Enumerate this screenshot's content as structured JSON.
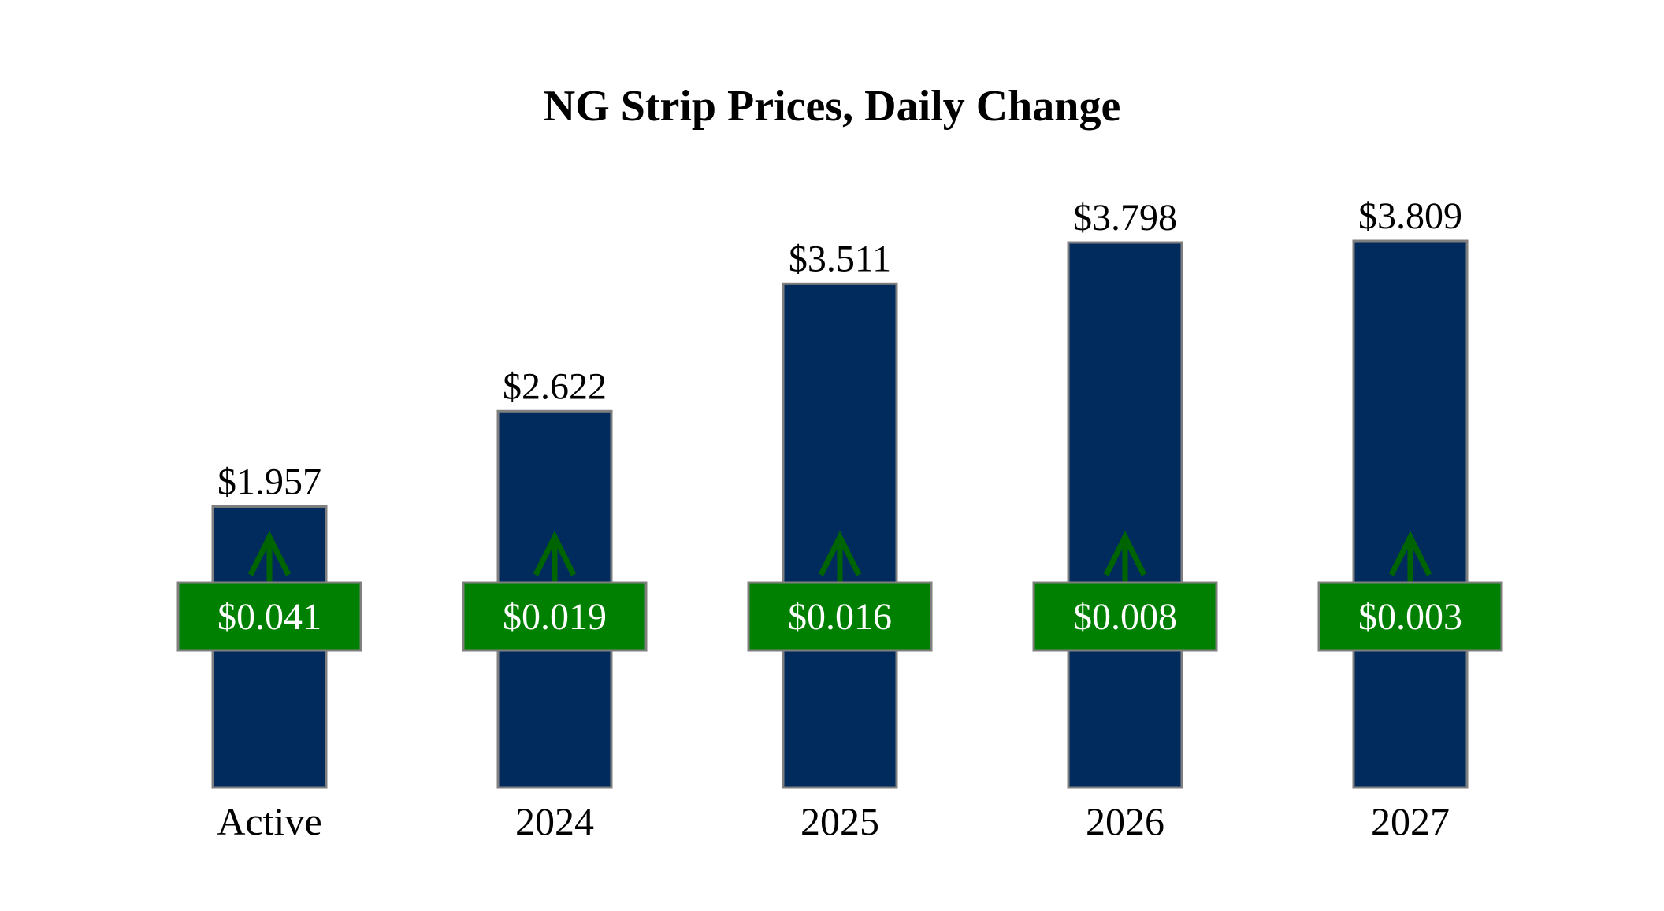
{
  "chart_data": {
    "type": "bar",
    "title": "NG Strip Prices, Daily Change",
    "xlabel": "",
    "ylabel": "",
    "categories": [
      "Active",
      "2024",
      "2025",
      "2026",
      "2027"
    ],
    "values": [
      1.957,
      2.622,
      3.511,
      3.798,
      3.809
    ],
    "value_labels": [
      "$1.957",
      "$2.622",
      "$3.511",
      "$3.798",
      "$3.809"
    ],
    "daily_change": [
      0.041,
      0.019,
      0.016,
      0.008,
      0.003
    ],
    "daily_change_labels": [
      "$0.041",
      "$0.019",
      "$0.016",
      "$0.008",
      "$0.003"
    ],
    "change_direction": [
      "up",
      "up",
      "up",
      "up",
      "up"
    ],
    "ylim": [
      0,
      3.809
    ],
    "grid": false,
    "legend": "none",
    "colors": {
      "bar": "#002b5c",
      "bar_outline": "#7f7f7f",
      "change_box": "#008000",
      "change_box_outline": "#7f7f7f",
      "change_text": "#ffffff",
      "arrow": "#006400",
      "text": "#000000"
    },
    "icons": {
      "change_direction_up": "arrow-up-icon"
    }
  }
}
